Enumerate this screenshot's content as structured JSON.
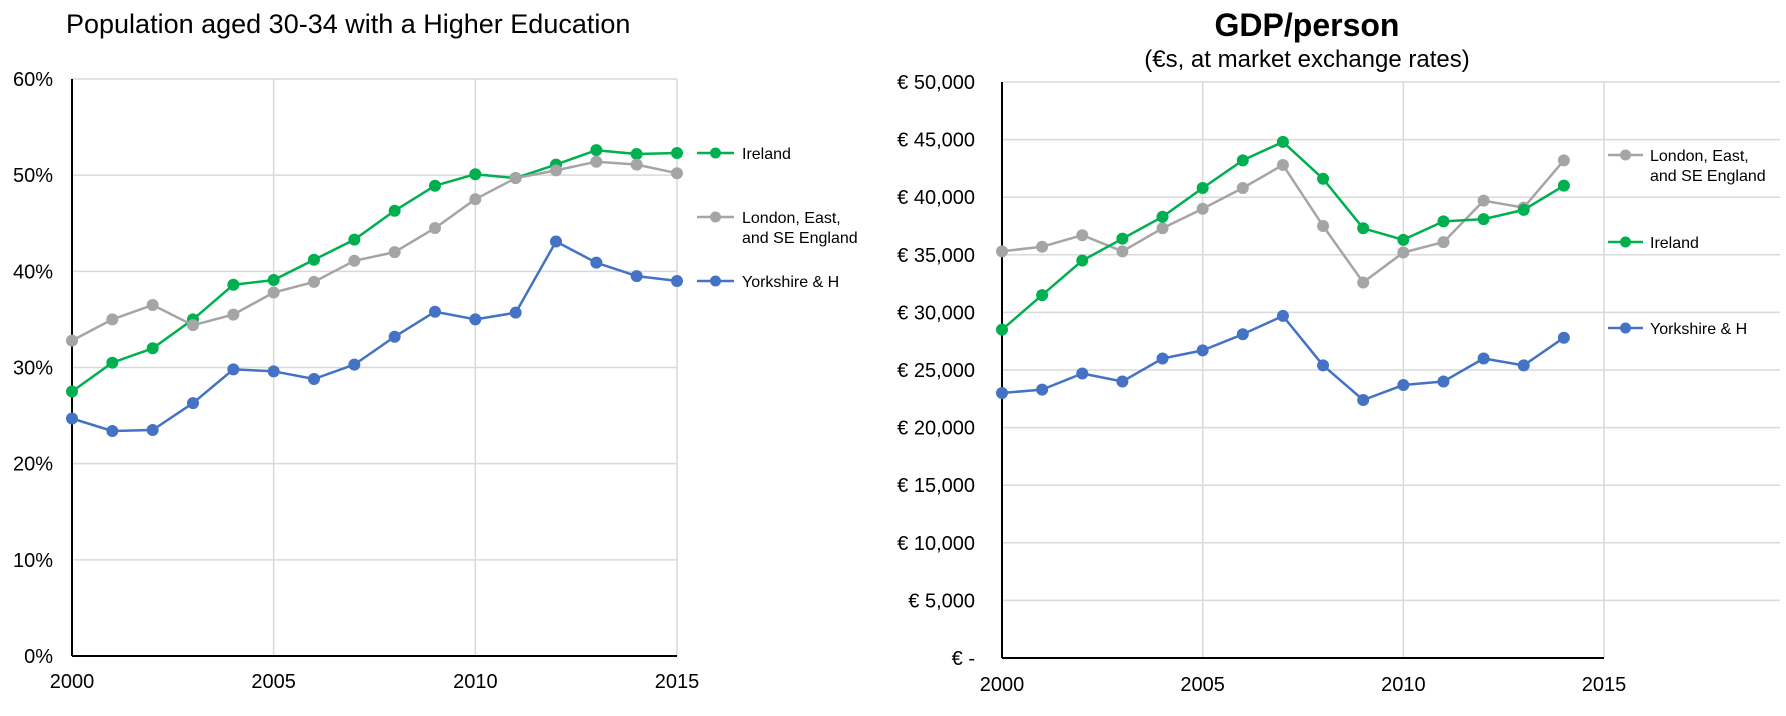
{
  "colors": {
    "ireland": "#00B050",
    "london": "#A5A5A5",
    "yorkshire": "#4472C4",
    "grid": "#D9D9D9"
  },
  "chart_data": [
    {
      "type": "line",
      "title": "Population aged 30-34 with a Higher Education",
      "x_ticks": [
        "2000",
        "2005",
        "2010",
        "2015"
      ],
      "y_ticks": [
        "0%",
        "10%",
        "20%",
        "30%",
        "40%",
        "50%",
        "60%"
      ],
      "xlim": [
        2000,
        2015
      ],
      "ylim": [
        0,
        60
      ],
      "grid": true,
      "legend": "right",
      "x": [
        2000,
        2001,
        2002,
        2003,
        2004,
        2005,
        2006,
        2007,
        2008,
        2009,
        2010,
        2011,
        2012,
        2013,
        2014,
        2015
      ],
      "series": [
        {
          "key": "ireland",
          "legend_lines": [
            "Ireland"
          ],
          "values": [
            27.5,
            30.5,
            32.0,
            35.0,
            38.6,
            39.1,
            41.2,
            43.3,
            46.3,
            48.9,
            50.1,
            49.7,
            51.1,
            52.6,
            52.2,
            52.3
          ]
        },
        {
          "key": "london",
          "legend_lines": [
            "London, East,",
            "and SE England"
          ],
          "values": [
            32.8,
            35.0,
            36.5,
            34.4,
            35.5,
            37.8,
            38.9,
            41.1,
            42.0,
            44.5,
            47.5,
            49.7,
            50.5,
            51.4,
            51.1,
            50.2
          ]
        },
        {
          "key": "yorkshire",
          "legend_lines": [
            "Yorkshire & H"
          ],
          "values": [
            24.7,
            23.4,
            23.5,
            26.3,
            29.8,
            29.6,
            28.8,
            30.3,
            33.2,
            35.8,
            35.0,
            35.7,
            43.1,
            40.9,
            39.5,
            39.0
          ]
        }
      ]
    },
    {
      "type": "line",
      "title": "GDP/person",
      "subtitle": "(€s, at market exchange rates)",
      "x_ticks": [
        "2000",
        "2005",
        "2010",
        "2015"
      ],
      "y_ticks": [
        "€ -",
        "€ 5,000",
        "€ 10,000",
        "€ 15,000",
        "€ 20,000",
        "€ 25,000",
        "€ 30,000",
        "€ 35,000",
        "€ 40,000",
        "€ 45,000",
        "€ 50,000"
      ],
      "xlim": [
        2000,
        2015
      ],
      "ylim": [
        0,
        50000
      ],
      "grid": true,
      "legend": "right",
      "x": [
        2000,
        2001,
        2002,
        2003,
        2004,
        2005,
        2006,
        2007,
        2008,
        2009,
        2010,
        2011,
        2012,
        2013,
        2014
      ],
      "series": [
        {
          "key": "london",
          "legend_lines": [
            "London, East,",
            "and SE England"
          ],
          "values": [
            35300,
            35700,
            36700,
            35300,
            37300,
            39000,
            40800,
            42800,
            37500,
            32600,
            35200,
            36100,
            39700,
            39100,
            43200
          ]
        },
        {
          "key": "ireland",
          "legend_lines": [
            "Ireland"
          ],
          "values": [
            28500,
            31500,
            34500,
            36400,
            38300,
            40800,
            43200,
            44800,
            41600,
            37300,
            36300,
            37900,
            38100,
            38900,
            41000
          ]
        },
        {
          "key": "yorkshire",
          "legend_lines": [
            "Yorkshire & H"
          ],
          "values": [
            23000,
            23300,
            24700,
            24000,
            26000,
            26700,
            28100,
            29700,
            25400,
            22400,
            23700,
            24000,
            26000,
            25400,
            27800
          ]
        }
      ]
    }
  ]
}
